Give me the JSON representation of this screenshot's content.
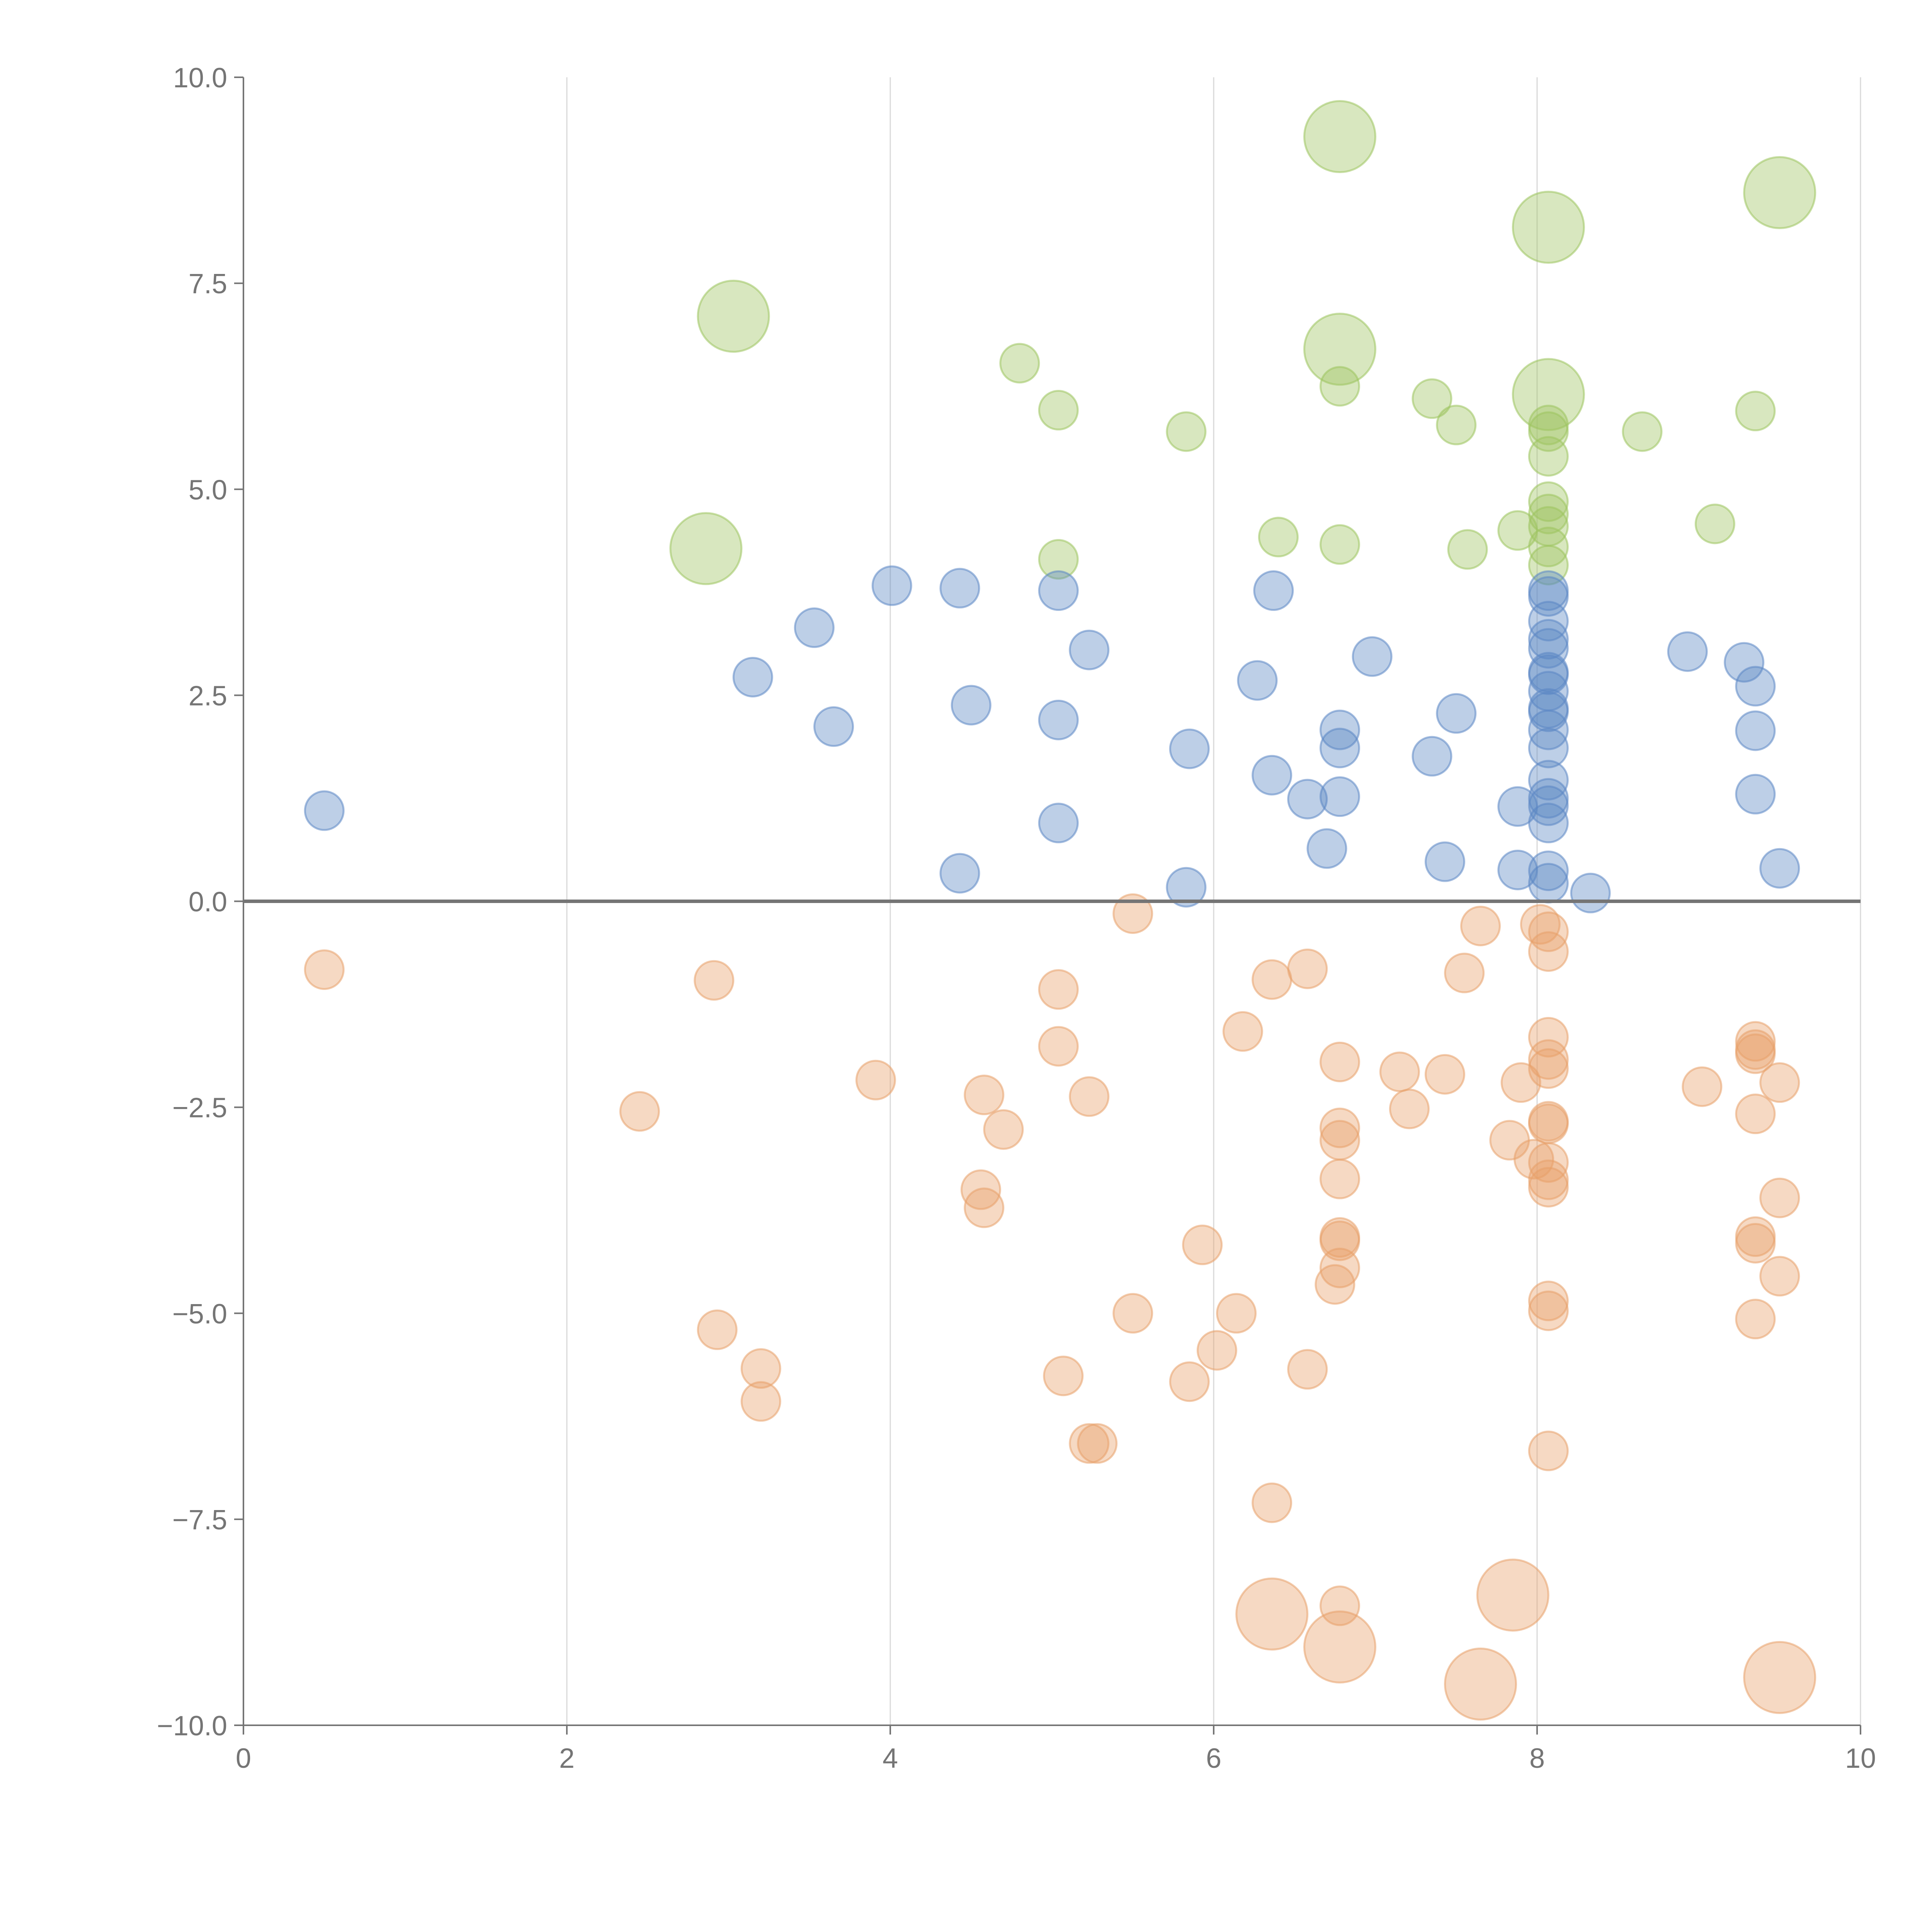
{
  "chart_data": {
    "type": "scatter",
    "title": "",
    "xlabel": "",
    "ylabel": "",
    "xlim": [
      0,
      10
    ],
    "ylim": [
      -10,
      10
    ],
    "grid": "vertical",
    "x_ticks": [
      0,
      2,
      4,
      6,
      8,
      10
    ],
    "x_tick_labels": [
      "0",
      "2",
      "4",
      "6",
      "8",
      "10"
    ],
    "y_ticks": [
      10,
      7.5,
      5,
      2.5,
      0,
      -2.5,
      -5,
      -7.5,
      -10
    ],
    "y_tick_labels": [
      "10.0",
      "7.5",
      "5.0",
      "2.5",
      "0.0",
      "−2.5",
      "−5.0",
      "−7.5",
      "−10.0"
    ],
    "series": [
      {
        "name": "green",
        "color": "#9dc45f",
        "points": [
          {
            "x": 6.78,
            "y": 9.28,
            "s": 3
          },
          {
            "x": 8.07,
            "y": 8.18,
            "s": 3
          },
          {
            "x": 9.5,
            "y": 8.6,
            "s": 3
          },
          {
            "x": 3.03,
            "y": 7.1,
            "s": 3
          },
          {
            "x": 6.78,
            "y": 6.7,
            "s": 3
          },
          {
            "x": 8.07,
            "y": 6.15,
            "s": 3
          },
          {
            "x": 2.86,
            "y": 4.28,
            "s": 3
          },
          {
            "x": 4.8,
            "y": 6.53,
            "s": 1
          },
          {
            "x": 5.04,
            "y": 5.96,
            "s": 1
          },
          {
            "x": 5.83,
            "y": 5.7,
            "s": 1
          },
          {
            "x": 6.78,
            "y": 6.25,
            "s": 1
          },
          {
            "x": 7.35,
            "y": 6.1,
            "s": 1
          },
          {
            "x": 7.5,
            "y": 5.78,
            "s": 1
          },
          {
            "x": 8.07,
            "y": 5.78,
            "s": 1
          },
          {
            "x": 8.07,
            "y": 5.7,
            "s": 1
          },
          {
            "x": 8.07,
            "y": 5.4,
            "s": 1
          },
          {
            "x": 8.07,
            "y": 4.85,
            "s": 1
          },
          {
            "x": 8.07,
            "y": 4.7,
            "s": 1
          },
          {
            "x": 8.07,
            "y": 4.55,
            "s": 1
          },
          {
            "x": 8.07,
            "y": 4.3,
            "s": 1
          },
          {
            "x": 8.07,
            "y": 4.08,
            "s": 1
          },
          {
            "x": 8.65,
            "y": 5.7,
            "s": 1
          },
          {
            "x": 9.35,
            "y": 5.95,
            "s": 1
          },
          {
            "x": 9.1,
            "y": 4.58,
            "s": 1
          },
          {
            "x": 5.04,
            "y": 4.15,
            "s": 1
          },
          {
            "x": 6.4,
            "y": 4.42,
            "s": 1
          },
          {
            "x": 6.78,
            "y": 4.33,
            "s": 1
          },
          {
            "x": 7.57,
            "y": 4.27,
            "s": 1
          },
          {
            "x": 7.88,
            "y": 4.5,
            "s": 1
          }
        ]
      },
      {
        "name": "blue",
        "color": "#5b87c4",
        "points": [
          {
            "x": 0.5,
            "y": 1.1,
            "s": 1
          },
          {
            "x": 3.15,
            "y": 2.72,
            "s": 1
          },
          {
            "x": 3.53,
            "y": 3.32,
            "s": 1
          },
          {
            "x": 3.65,
            "y": 2.12,
            "s": 1
          },
          {
            "x": 4.01,
            "y": 3.83,
            "s": 1
          },
          {
            "x": 4.43,
            "y": 3.8,
            "s": 1
          },
          {
            "x": 4.5,
            "y": 2.38,
            "s": 1
          },
          {
            "x": 4.43,
            "y": 0.34,
            "s": 1
          },
          {
            "x": 5.04,
            "y": 3.77,
            "s": 1
          },
          {
            "x": 5.04,
            "y": 2.2,
            "s": 1
          },
          {
            "x": 5.04,
            "y": 0.95,
            "s": 1
          },
          {
            "x": 5.23,
            "y": 3.05,
            "s": 1
          },
          {
            "x": 5.85,
            "y": 1.85,
            "s": 1
          },
          {
            "x": 5.83,
            "y": 0.17,
            "s": 1
          },
          {
            "x": 6.27,
            "y": 2.68,
            "s": 1
          },
          {
            "x": 6.37,
            "y": 3.77,
            "s": 1
          },
          {
            "x": 6.36,
            "y": 1.53,
            "s": 1
          },
          {
            "x": 6.58,
            "y": 1.24,
            "s": 1
          },
          {
            "x": 6.7,
            "y": 0.64,
            "s": 1
          },
          {
            "x": 6.78,
            "y": 2.08,
            "s": 1
          },
          {
            "x": 6.78,
            "y": 1.86,
            "s": 1
          },
          {
            "x": 6.78,
            "y": 1.27,
            "s": 1
          },
          {
            "x": 6.98,
            "y": 2.97,
            "s": 1
          },
          {
            "x": 7.35,
            "y": 1.76,
            "s": 1
          },
          {
            "x": 7.43,
            "y": 0.48,
            "s": 1
          },
          {
            "x": 7.5,
            "y": 2.28,
            "s": 1
          },
          {
            "x": 7.88,
            "y": 1.15,
            "s": 1
          },
          {
            "x": 7.88,
            "y": 0.38,
            "s": 1
          },
          {
            "x": 8.07,
            "y": 3.77,
            "s": 1
          },
          {
            "x": 8.07,
            "y": 3.7,
            "s": 1
          },
          {
            "x": 8.07,
            "y": 3.4,
            "s": 1
          },
          {
            "x": 8.07,
            "y": 3.18,
            "s": 1
          },
          {
            "x": 8.07,
            "y": 3.07,
            "s": 1
          },
          {
            "x": 8.07,
            "y": 2.78,
            "s": 1
          },
          {
            "x": 8.07,
            "y": 2.75,
            "s": 1
          },
          {
            "x": 8.07,
            "y": 2.55,
            "s": 1
          },
          {
            "x": 8.07,
            "y": 2.34,
            "s": 1
          },
          {
            "x": 8.07,
            "y": 2.3,
            "s": 1
          },
          {
            "x": 8.07,
            "y": 2.08,
            "s": 1
          },
          {
            "x": 8.07,
            "y": 1.86,
            "s": 1
          },
          {
            "x": 8.07,
            "y": 1.47,
            "s": 1
          },
          {
            "x": 8.07,
            "y": 1.25,
            "s": 1
          },
          {
            "x": 8.07,
            "y": 1.16,
            "s": 1
          },
          {
            "x": 8.07,
            "y": 0.95,
            "s": 1
          },
          {
            "x": 8.07,
            "y": 0.37,
            "s": 1
          },
          {
            "x": 8.07,
            "y": 0.22,
            "s": 1
          },
          {
            "x": 8.33,
            "y": 0.1,
            "s": 1
          },
          {
            "x": 8.93,
            "y": 3.03,
            "s": 1
          },
          {
            "x": 9.28,
            "y": 2.9,
            "s": 1
          },
          {
            "x": 9.35,
            "y": 2.61,
            "s": 1
          },
          {
            "x": 9.35,
            "y": 2.07,
            "s": 1
          },
          {
            "x": 9.35,
            "y": 1.3,
            "s": 1
          },
          {
            "x": 9.5,
            "y": 0.4,
            "s": 1
          }
        ]
      },
      {
        "name": "orange",
        "color": "#e8a06a",
        "points": [
          {
            "x": 0.5,
            "y": -0.83,
            "s": 1
          },
          {
            "x": 2.45,
            "y": -2.55,
            "s": 1
          },
          {
            "x": 2.91,
            "y": -0.96,
            "s": 1
          },
          {
            "x": 2.93,
            "y": -5.2,
            "s": 1
          },
          {
            "x": 3.2,
            "y": -5.67,
            "s": 1
          },
          {
            "x": 3.2,
            "y": -6.07,
            "s": 1
          },
          {
            "x": 3.91,
            "y": -2.17,
            "s": 1
          },
          {
            "x": 4.58,
            "y": -2.35,
            "s": 1
          },
          {
            "x": 4.7,
            "y": -2.77,
            "s": 1
          },
          {
            "x": 4.56,
            "y": -3.5,
            "s": 1
          },
          {
            "x": 4.58,
            "y": -3.72,
            "s": 1
          },
          {
            "x": 5.04,
            "y": -1.07,
            "s": 1
          },
          {
            "x": 5.04,
            "y": -1.76,
            "s": 1
          },
          {
            "x": 5.23,
            "y": -2.37,
            "s": 1
          },
          {
            "x": 5.07,
            "y": -5.76,
            "s": 1
          },
          {
            "x": 5.23,
            "y": -6.58,
            "s": 1
          },
          {
            "x": 5.28,
            "y": -6.58,
            "s": 1
          },
          {
            "x": 5.5,
            "y": -0.15,
            "s": 1
          },
          {
            "x": 5.5,
            "y": -5.0,
            "s": 1
          },
          {
            "x": 5.93,
            "y": -4.17,
            "s": 1
          },
          {
            "x": 5.85,
            "y": -5.83,
            "s": 1
          },
          {
            "x": 6.02,
            "y": -5.45,
            "s": 1
          },
          {
            "x": 6.14,
            "y": -5.0,
            "s": 1
          },
          {
            "x": 6.18,
            "y": -1.58,
            "s": 1
          },
          {
            "x": 6.36,
            "y": -0.95,
            "s": 1
          },
          {
            "x": 6.36,
            "y": -7.3,
            "s": 1
          },
          {
            "x": 6.58,
            "y": -0.82,
            "s": 1
          },
          {
            "x": 6.58,
            "y": -5.68,
            "s": 1
          },
          {
            "x": 6.78,
            "y": -1.95,
            "s": 1
          },
          {
            "x": 6.78,
            "y": -2.75,
            "s": 1
          },
          {
            "x": 6.78,
            "y": -2.9,
            "s": 1
          },
          {
            "x": 6.78,
            "y": -3.37,
            "s": 1
          },
          {
            "x": 6.78,
            "y": -4.08,
            "s": 1
          },
          {
            "x": 6.78,
            "y": -4.12,
            "s": 1
          },
          {
            "x": 6.78,
            "y": -4.45,
            "s": 1
          },
          {
            "x": 6.75,
            "y": -4.65,
            "s": 1
          },
          {
            "x": 6.78,
            "y": -8.55,
            "s": 1
          },
          {
            "x": 7.15,
            "y": -2.07,
            "s": 1
          },
          {
            "x": 7.21,
            "y": -2.52,
            "s": 1
          },
          {
            "x": 7.43,
            "y": -2.1,
            "s": 1
          },
          {
            "x": 7.55,
            "y": -0.87,
            "s": 1
          },
          {
            "x": 7.65,
            "y": -0.3,
            "s": 1
          },
          {
            "x": 7.83,
            "y": -2.9,
            "s": 1
          },
          {
            "x": 7.9,
            "y": -2.2,
            "s": 1
          },
          {
            "x": 7.98,
            "y": -3.13,
            "s": 1
          },
          {
            "x": 8.02,
            "y": -0.28,
            "s": 1
          },
          {
            "x": 8.07,
            "y": -0.37,
            "s": 1
          },
          {
            "x": 8.07,
            "y": -0.61,
            "s": 1
          },
          {
            "x": 8.07,
            "y": -1.65,
            "s": 1
          },
          {
            "x": 8.07,
            "y": -1.92,
            "s": 1
          },
          {
            "x": 8.07,
            "y": -2.03,
            "s": 1
          },
          {
            "x": 8.07,
            "y": -2.67,
            "s": 1
          },
          {
            "x": 8.07,
            "y": -2.7,
            "s": 1
          },
          {
            "x": 8.07,
            "y": -3.17,
            "s": 1
          },
          {
            "x": 8.07,
            "y": -3.38,
            "s": 1
          },
          {
            "x": 8.07,
            "y": -3.47,
            "s": 1
          },
          {
            "x": 8.07,
            "y": -4.85,
            "s": 1
          },
          {
            "x": 8.07,
            "y": -4.97,
            "s": 1
          },
          {
            "x": 8.07,
            "y": -6.67,
            "s": 1
          },
          {
            "x": 9.02,
            "y": -2.25,
            "s": 1
          },
          {
            "x": 9.35,
            "y": -1.7,
            "s": 1
          },
          {
            "x": 9.35,
            "y": -1.8,
            "s": 1
          },
          {
            "x": 9.35,
            "y": -1.85,
            "s": 1
          },
          {
            "x": 9.35,
            "y": -2.58,
            "s": 1
          },
          {
            "x": 9.35,
            "y": -4.07,
            "s": 1
          },
          {
            "x": 9.35,
            "y": -4.15,
            "s": 1
          },
          {
            "x": 9.35,
            "y": -5.07,
            "s": 1
          },
          {
            "x": 9.5,
            "y": -2.2,
            "s": 1
          },
          {
            "x": 9.5,
            "y": -3.6,
            "s": 1
          },
          {
            "x": 9.5,
            "y": -4.55,
            "s": 1
          },
          {
            "x": 6.36,
            "y": -8.65,
            "s": 3
          },
          {
            "x": 6.78,
            "y": -9.05,
            "s": 3
          },
          {
            "x": 7.85,
            "y": -8.42,
            "s": 3
          },
          {
            "x": 7.65,
            "y": -9.5,
            "s": 3
          },
          {
            "x": 9.5,
            "y": -9.42,
            "s": 3
          }
        ]
      }
    ]
  }
}
